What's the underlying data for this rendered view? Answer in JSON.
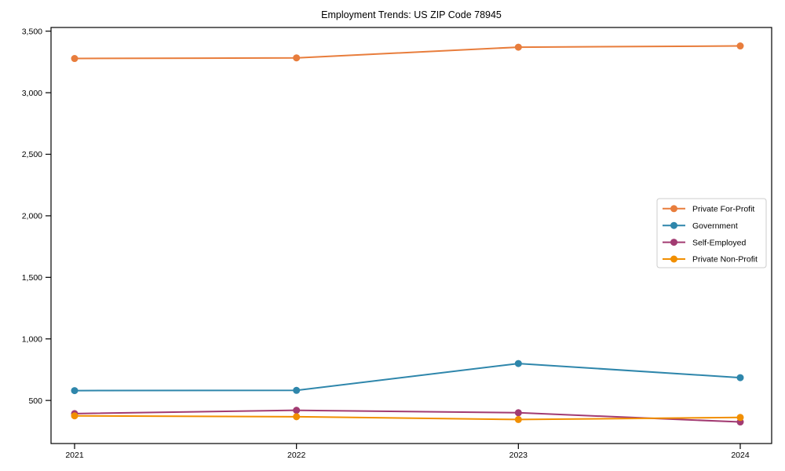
{
  "figure": {
    "background": "#ffffff",
    "axes_border_color": "#000000",
    "tick_color": "#000000"
  },
  "chart_data": {
    "type": "line",
    "title": "Employment Trends: US ZIP Code 78945",
    "xlabel": "",
    "ylabel": "",
    "grid": false,
    "x_categories": [
      "2021",
      "2022",
      "2023",
      "2024"
    ],
    "y_ticks": [
      500,
      1000,
      1500,
      2000,
      2500,
      3000,
      3500
    ],
    "y_tick_labels": [
      "500",
      "1,000",
      "1,500",
      "2,000",
      "2,500",
      "3,000",
      "3,500"
    ],
    "ylim": [
      150,
      3530
    ],
    "legend": {
      "position": "center-right",
      "background": "#ffffff",
      "border_color": "#cccccc"
    },
    "series": [
      {
        "name": "Private For-Profit",
        "color": "#E87D3C",
        "values": [
          3278,
          3283,
          3370,
          3380
        ]
      },
      {
        "name": "Government",
        "color": "#2E86AB",
        "values": [
          580,
          582,
          800,
          685
        ]
      },
      {
        "name": "Self-Employed",
        "color": "#A23B72",
        "values": [
          393,
          420,
          400,
          325
        ]
      },
      {
        "name": "Private Non-Profit",
        "color": "#F18F01",
        "values": [
          375,
          368,
          345,
          362
        ]
      }
    ]
  }
}
